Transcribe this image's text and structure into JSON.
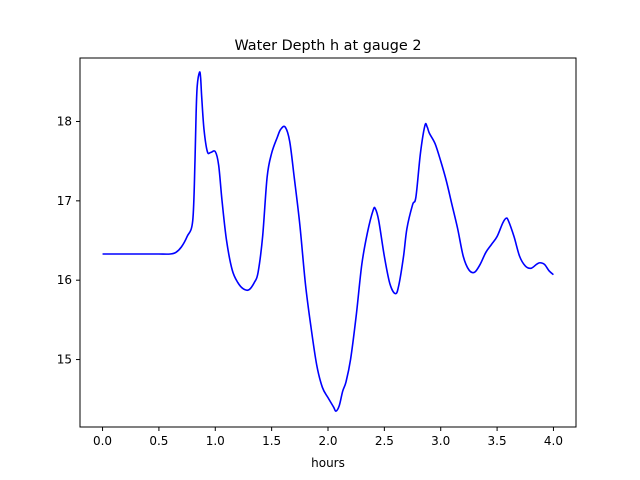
{
  "chart_data": {
    "type": "line",
    "title": "Water Depth h at gauge 2",
    "xlabel": "hours",
    "ylabel": "",
    "xlim": [
      -0.2,
      4.2
    ],
    "ylim": [
      14.15,
      18.8
    ],
    "xticks": [
      0.0,
      0.5,
      1.0,
      1.5,
      2.0,
      2.5,
      3.0,
      3.5,
      4.0
    ],
    "xtick_labels": [
      "0.0",
      "0.5",
      "1.0",
      "1.5",
      "2.0",
      "2.5",
      "3.0",
      "3.5",
      "4.0"
    ],
    "yticks": [
      15,
      16,
      17,
      18
    ],
    "ytick_labels": [
      "15",
      "16",
      "17",
      "18"
    ],
    "grid": false,
    "line_color": "#0000ff",
    "series": [
      {
        "x": [
          0.0,
          0.1,
          0.2,
          0.3,
          0.4,
          0.5,
          0.6,
          0.65,
          0.7,
          0.75,
          0.8,
          0.82,
          0.83,
          0.84,
          0.86,
          0.87,
          0.88,
          0.9,
          0.93,
          0.96,
          1.0,
          1.03,
          1.06,
          1.1,
          1.15,
          1.2,
          1.25,
          1.3,
          1.35,
          1.38,
          1.42,
          1.46,
          1.5,
          1.55,
          1.58,
          1.62,
          1.66,
          1.7,
          1.75,
          1.8,
          1.85,
          1.9,
          1.95,
          2.0,
          2.05,
          2.07,
          2.1,
          2.13,
          2.16,
          2.2,
          2.25,
          2.3,
          2.35,
          2.4,
          2.42,
          2.45,
          2.5,
          2.55,
          2.6,
          2.63,
          2.67,
          2.7,
          2.75,
          2.78,
          2.82,
          2.86,
          2.88,
          2.9,
          2.95,
          3.0,
          3.05,
          3.1,
          3.15,
          3.2,
          3.25,
          3.3,
          3.35,
          3.4,
          3.45,
          3.5,
          3.55,
          3.58,
          3.6,
          3.65,
          3.7,
          3.75,
          3.8,
          3.85,
          3.88,
          3.92,
          3.96,
          4.0
        ],
        "y": [
          16.33,
          16.33,
          16.33,
          16.33,
          16.33,
          16.33,
          16.33,
          16.35,
          16.42,
          16.55,
          16.75,
          17.5,
          18.1,
          18.45,
          18.62,
          18.55,
          18.3,
          17.9,
          17.62,
          17.61,
          17.62,
          17.45,
          17.0,
          16.5,
          16.13,
          15.97,
          15.89,
          15.88,
          15.98,
          16.1,
          16.55,
          17.3,
          17.6,
          17.8,
          17.9,
          17.93,
          17.75,
          17.3,
          16.7,
          15.95,
          15.4,
          14.93,
          14.65,
          14.52,
          14.4,
          14.35,
          14.42,
          14.6,
          14.72,
          15.0,
          15.55,
          16.2,
          16.6,
          16.88,
          16.9,
          16.75,
          16.3,
          15.95,
          15.83,
          15.95,
          16.3,
          16.65,
          16.95,
          17.05,
          17.6,
          17.95,
          17.93,
          17.85,
          17.72,
          17.5,
          17.25,
          16.95,
          16.65,
          16.3,
          16.13,
          16.1,
          16.2,
          16.35,
          16.45,
          16.55,
          16.72,
          16.78,
          16.75,
          16.55,
          16.3,
          16.18,
          16.15,
          16.2,
          16.22,
          16.2,
          16.12,
          16.07
        ]
      }
    ]
  }
}
